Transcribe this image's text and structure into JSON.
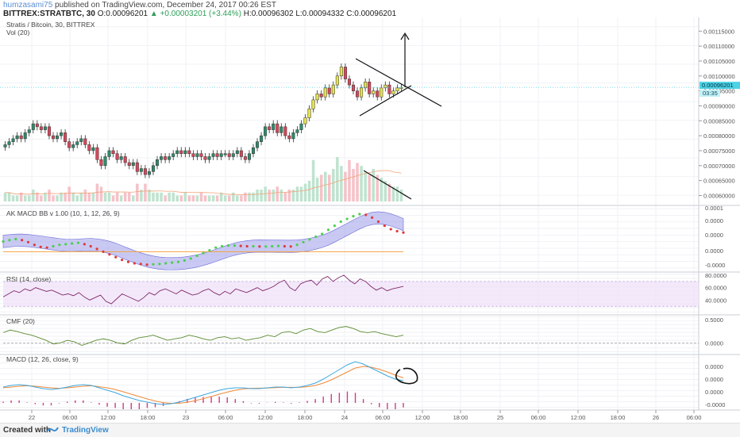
{
  "header": {
    "author": "humzasami75",
    "published": "published on TradingView.com, December 24, 2017 00:26 EST",
    "symbol": "BITTREX:STRATBTC, 30",
    "change_arrow": "▲",
    "ohlc": {
      "o_label": "O:",
      "o": "0.00096201",
      "change": "+0.00003201 (+3.44%)",
      "h_label": "H:",
      "h": "0.00096302",
      "l_label": "L:",
      "l": "0.00094332",
      "c_label": "C:",
      "c": "0.00096201"
    }
  },
  "footer": {
    "created_with": "Created with",
    "brand": "TradingView"
  },
  "colors": {
    "up": "#2f8a6a",
    "down": "#d8465a",
    "doji_up": "#e5e24a",
    "macd": "#3fa8e0",
    "signal": "#f08a3a",
    "rsi": "#7e2a6a",
    "cmf": "#5a8a30",
    "band": "#9c9cea",
    "price_line": "#4dd2e6"
  },
  "chart_data": [
    {
      "type": "candlestick",
      "pane": "price",
      "title": "Stratis / Bitcoin, 30, BITTREX",
      "volume_label": "Vol (20)",
      "ylim": [
        0.00058,
        0.00118
      ],
      "yticks": [
        "0.00115000",
        "0.00110000",
        "0.00105000",
        "0.00100000",
        "0.00095000",
        "0.00090000",
        "0.00085000",
        "0.00080000",
        "0.00075000",
        "0.00070000",
        "0.00065000",
        "0.00060000"
      ],
      "last_price": "0.00096201",
      "countdown": "03:35",
      "close": [
        0.00077,
        0.00078,
        0.00079,
        0.0008,
        0.00079,
        0.00081,
        0.00082,
        0.00084,
        0.00083,
        0.00082,
        0.00083,
        0.0008,
        0.00079,
        0.0008,
        0.00081,
        0.00078,
        0.00076,
        0.00077,
        0.00078,
        0.00079,
        0.00077,
        0.00075,
        0.00076,
        0.00072,
        0.0007,
        0.00073,
        0.00075,
        0.00074,
        0.00072,
        0.00073,
        0.00071,
        0.0007,
        0.00071,
        0.00068,
        0.00069,
        0.00067,
        0.00068,
        0.0007,
        0.00072,
        0.00073,
        0.00072,
        0.00073,
        0.00074,
        0.00075,
        0.00074,
        0.00075,
        0.00074,
        0.00073,
        0.00074,
        0.00073,
        0.00072,
        0.00073,
        0.00074,
        0.00073,
        0.00074,
        0.00074,
        0.00073,
        0.00074,
        0.00075,
        0.00073,
        0.00072,
        0.00074,
        0.00076,
        0.00078,
        0.0008,
        0.00083,
        0.00082,
        0.00084,
        0.00081,
        0.00083,
        0.0008,
        0.00079,
        0.00081,
        0.00082,
        0.00084,
        0.00086,
        0.00089,
        0.00092,
        0.00094,
        0.00093,
        0.00096,
        0.00094,
        0.00097,
        0.001,
        0.00103,
        0.00099,
        0.00097,
        0.00095,
        0.00093,
        0.00096,
        0.00098,
        0.00094,
        0.00095,
        0.00093,
        0.00096,
        0.00097,
        0.00094,
        0.00095,
        0.00096,
        0.00096201
      ],
      "volume": [
        3,
        3,
        2,
        2,
        3,
        2,
        2,
        4,
        3,
        2,
        3,
        4,
        2,
        2,
        3,
        3,
        5,
        3,
        2,
        3,
        4,
        3,
        3,
        6,
        5,
        3,
        3,
        2,
        3,
        2,
        3,
        3,
        2,
        6,
        4,
        6,
        4,
        3,
        3,
        3,
        2,
        3,
        3,
        2,
        2,
        3,
        2,
        2,
        2,
        3,
        2,
        2,
        2,
        2,
        3,
        2,
        2,
        3,
        2,
        2,
        3,
        3,
        3,
        4,
        4,
        5,
        4,
        4,
        5,
        4,
        3,
        4,
        4,
        5,
        5,
        6,
        7,
        14,
        8,
        9,
        10,
        9,
        11,
        15,
        12,
        10,
        14,
        11,
        13,
        12,
        10,
        9,
        11,
        9,
        8,
        7,
        6,
        5,
        5,
        4
      ]
    },
    {
      "type": "line",
      "pane": "macd_bb",
      "title": "AK MACD BB v 1.00 (10, 1, 12, 26, 9)",
      "yticks": [
        "0.0001",
        "0.0000",
        "0.0000",
        "0.0000",
        "-0.0000"
      ],
      "values": [
        0.45,
        0.55,
        0.62,
        0.55,
        0.4,
        0.2,
        0.05,
        0.0,
        0.1,
        0.2,
        0.25,
        0.3,
        0.35,
        0.25,
        0.1,
        -0.1,
        -0.3,
        -0.5,
        -0.7,
        -0.9,
        -1.05,
        -1.15,
        -1.2,
        -1.25,
        -1.22,
        -1.2,
        -1.15,
        -1.1,
        -1.05,
        -0.95,
        -0.8,
        -0.6,
        -0.4,
        -0.2,
        0.0,
        0.1,
        0.15,
        0.15,
        0.12,
        0.1,
        0.1,
        0.08,
        0.08,
        0.1,
        0.12,
        0.1,
        0.08,
        0.2,
        0.4,
        0.6,
        0.8,
        1.0,
        1.3,
        1.6,
        1.9,
        2.1,
        2.3,
        2.45,
        2.4,
        2.2,
        1.9,
        1.6,
        1.35,
        1.2,
        1.1
      ]
    },
    {
      "type": "line",
      "pane": "rsi",
      "title": "RSI (14, close)",
      "ylim": [
        20,
        80
      ],
      "yticks": [
        "80.0000",
        "60.0000",
        "40.0000"
      ],
      "values": [
        45,
        50,
        55,
        52,
        58,
        55,
        60,
        57,
        54,
        56,
        52,
        48,
        50,
        47,
        52,
        45,
        40,
        44,
        48,
        38,
        34,
        42,
        50,
        46,
        42,
        38,
        44,
        52,
        48,
        55,
        58,
        54,
        50,
        56,
        52,
        48,
        50,
        55,
        58,
        52,
        48,
        54,
        50,
        58,
        55,
        52,
        56,
        60,
        55,
        58,
        62,
        68,
        72,
        60,
        55,
        66,
        70,
        72,
        64,
        74,
        78,
        70,
        76,
        80,
        72,
        66,
        74,
        70,
        62,
        56,
        60,
        55,
        58,
        60,
        62
      ]
    },
    {
      "type": "line",
      "pane": "cmf",
      "title": "CMF (20)",
      "yticks": [
        "0.5000",
        "0.0000"
      ],
      "values": [
        0.2,
        0.25,
        0.22,
        0.18,
        0.15,
        0.1,
        0.05,
        -0.02,
        0.0,
        0.05,
        0.02,
        -0.05,
        0.0,
        0.05,
        0.08,
        0.05,
        0.0,
        -0.02,
        0.05,
        0.1,
        0.12,
        0.15,
        0.1,
        0.05,
        0.08,
        0.1,
        0.15,
        0.12,
        0.08,
        0.05,
        0.1,
        0.12,
        0.08,
        0.1,
        0.05,
        0.08,
        0.1,
        0.15,
        0.12,
        0.2,
        0.22,
        0.18,
        0.25,
        0.28,
        0.22,
        0.2,
        0.25,
        0.3,
        0.32,
        0.28,
        0.22,
        0.2,
        0.22,
        0.18,
        0.15,
        0.12,
        0.15
      ]
    },
    {
      "type": "line",
      "pane": "macd",
      "title": "MACD (12, 26, close, 9)",
      "yticks": [
        "0.0000",
        "0.0000",
        "0.0000",
        "-0.0000"
      ],
      "macd": [
        0.1,
        0.2,
        0.25,
        0.2,
        0.1,
        0.0,
        -0.05,
        0.0,
        0.1,
        0.2,
        0.25,
        0.2,
        0.05,
        -0.1,
        -0.25,
        -0.45,
        -0.6,
        -0.75,
        -0.85,
        -0.95,
        -1.0,
        -0.95,
        -0.85,
        -0.7,
        -0.55,
        -0.4,
        -0.25,
        -0.1,
        0.0,
        0.05,
        0.05,
        0.0,
        0.0,
        0.05,
        0.1,
        0.1,
        0.05,
        0.1,
        0.2,
        0.35,
        0.6,
        0.9,
        1.2,
        1.5,
        1.7,
        1.55,
        1.3,
        1.05,
        0.8,
        0.6,
        0.5
      ],
      "signal": [
        0.05,
        0.1,
        0.15,
        0.18,
        0.15,
        0.1,
        0.05,
        0.02,
        0.05,
        0.1,
        0.15,
        0.18,
        0.12,
        0.05,
        -0.05,
        -0.2,
        -0.35,
        -0.5,
        -0.65,
        -0.78,
        -0.88,
        -0.93,
        -0.92,
        -0.86,
        -0.76,
        -0.63,
        -0.5,
        -0.35,
        -0.22,
        -0.1,
        -0.02,
        0.02,
        0.03,
        0.04,
        0.06,
        0.08,
        0.08,
        0.08,
        0.12,
        0.2,
        0.35,
        0.55,
        0.8,
        1.05,
        1.3,
        1.4,
        1.35,
        1.22,
        1.05,
        0.85,
        0.68
      ]
    }
  ],
  "time_axis": {
    "labels": [
      "22",
      "06:00",
      "12:00",
      "18:00",
      "23",
      "06:00",
      "12:00",
      "18:00",
      "24",
      "06:00",
      "12:00",
      "18:00",
      "25",
      "06:00",
      "12:00",
      "18:00",
      "26",
      "06:00"
    ]
  }
}
